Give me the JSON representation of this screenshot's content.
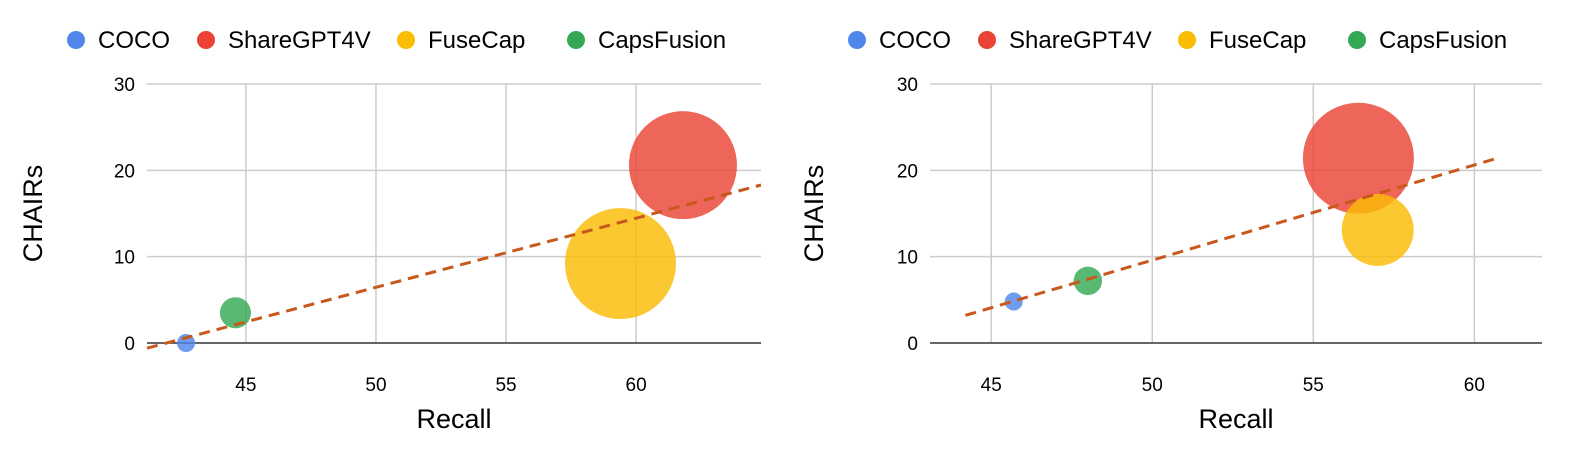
{
  "colors": {
    "COCO": "#4F86EC",
    "ShareGPT4V": "#EA4335",
    "FuseCap": "#FBBC04",
    "CapsFusion": "#34A853",
    "trend": "#C8581B",
    "grid": "#CCCCCC",
    "baseline": "#333333"
  },
  "chart_data": [
    {
      "type": "scatter",
      "subtype": "bubble",
      "title": "",
      "xlabel": "Recall",
      "ylabel": "CHAIRs",
      "xlim": [
        41.2,
        64.8
      ],
      "ylim": [
        0,
        30
      ],
      "xticks": [
        45,
        50,
        55,
        60
      ],
      "yticks": [
        0,
        10,
        20,
        30
      ],
      "grid": true,
      "legend": "top-left",
      "legend_labels": [
        "COCO",
        "ShareGPT4V",
        "FuseCap",
        "CapsFusion"
      ],
      "series": [
        {
          "name": "COCO",
          "x": 42.7,
          "y": 0.0,
          "size": 1
        },
        {
          "name": "ShareGPT4V",
          "x": 61.8,
          "y": 20.6,
          "size": 36
        },
        {
          "name": "FuseCap",
          "x": 59.4,
          "y": 9.2,
          "size": 38
        },
        {
          "name": "CapsFusion",
          "x": 44.6,
          "y": 3.5,
          "size": 3
        }
      ],
      "trendline": {
        "style": "dashed",
        "x": [
          41.2,
          64.8
        ],
        "y": [
          -0.6,
          18.3
        ]
      }
    },
    {
      "type": "scatter",
      "subtype": "bubble",
      "title": "",
      "xlabel": "Recall",
      "ylabel": "CHAIRs",
      "xlim": [
        43.1,
        62.1
      ],
      "ylim": [
        0,
        30
      ],
      "xticks": [
        45,
        50,
        55,
        60
      ],
      "yticks": [
        0,
        10,
        20,
        30
      ],
      "grid": true,
      "legend": "top-left",
      "legend_labels": [
        "COCO",
        "ShareGPT4V",
        "FuseCap",
        "CapsFusion"
      ],
      "series": [
        {
          "name": "COCO",
          "x": 45.7,
          "y": 4.8,
          "size": 1
        },
        {
          "name": "ShareGPT4V",
          "x": 56.4,
          "y": 21.4,
          "size": 38
        },
        {
          "name": "FuseCap",
          "x": 57.0,
          "y": 13.1,
          "size": 16
        },
        {
          "name": "CapsFusion",
          "x": 48.0,
          "y": 7.2,
          "size": 2.5
        }
      ],
      "trendline": {
        "style": "dashed",
        "x": [
          44.2,
          60.8
        ],
        "y": [
          3.2,
          21.5
        ]
      }
    }
  ]
}
